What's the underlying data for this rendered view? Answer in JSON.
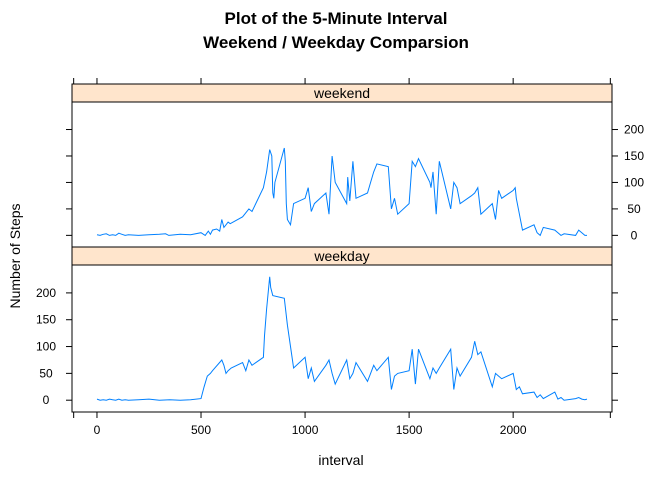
{
  "chart_data": {
    "type": "line",
    "title": [
      "Plot of the 5-Minute Interval",
      "Weekend / Weekday Comparsion"
    ],
    "xlabel": "interval",
    "ylabel": "Number of Steps",
    "xlim": [
      -120,
      2475
    ],
    "ylim": [
      -22,
      252
    ],
    "x_ticks": [
      0,
      500,
      1000,
      1500,
      2000
    ],
    "y_ticks": [
      0,
      50,
      100,
      150,
      200
    ],
    "line_color": "#0080ff",
    "strip_color": "#ffe5cc",
    "panels": [
      {
        "name": "weekend",
        "y_axis_side": "right",
        "x": [
          0,
          15,
          30,
          45,
          60,
          75,
          90,
          105,
          120,
          135,
          150,
          200,
          250,
          300,
          330,
          345,
          400,
          450,
          500,
          520,
          535,
          545,
          555,
          575,
          590,
          600,
          610,
          620,
          630,
          640,
          700,
          730,
          745,
          800,
          815,
          830,
          840,
          845,
          850,
          855,
          900,
          905,
          910,
          915,
          930,
          945,
          1000,
          1015,
          1030,
          1045,
          1100,
          1115,
          1130,
          1145,
          1200,
          1205,
          1215,
          1230,
          1245,
          1300,
          1315,
          1330,
          1345,
          1400,
          1415,
          1430,
          1445,
          1500,
          1515,
          1530,
          1545,
          1600,
          1605,
          1615,
          1630,
          1645,
          1700,
          1715,
          1730,
          1745,
          1800,
          1815,
          1830,
          1845,
          1900,
          1915,
          1930,
          1945,
          2000,
          2010,
          2015,
          2030,
          2045,
          2100,
          2115,
          2130,
          2145,
          2200,
          2215,
          2230,
          2245,
          2300,
          2315,
          2330,
          2345,
          2355
        ],
        "values": [
          1,
          0,
          2,
          3,
          0,
          1,
          0,
          4,
          2,
          0,
          1,
          0,
          1,
          2,
          3,
          0,
          2,
          1,
          5,
          0,
          8,
          2,
          10,
          12,
          8,
          30,
          15,
          20,
          25,
          22,
          35,
          50,
          45,
          90,
          120,
          162,
          150,
          80,
          70,
          100,
          165,
          140,
          60,
          30,
          20,
          60,
          70,
          90,
          45,
          60,
          80,
          40,
          150,
          100,
          60,
          110,
          65,
          140,
          70,
          80,
          100,
          120,
          135,
          130,
          50,
          70,
          40,
          60,
          140,
          130,
          145,
          100,
          90,
          120,
          40,
          140,
          50,
          100,
          90,
          60,
          75,
          80,
          90,
          40,
          60,
          30,
          85,
          70,
          85,
          90,
          70,
          40,
          10,
          20,
          5,
          0,
          15,
          10,
          5,
          0,
          3,
          0,
          10,
          5,
          0,
          0
        ]
      },
      {
        "name": "weekday",
        "y_axis_side": "left",
        "x": [
          0,
          15,
          30,
          45,
          60,
          75,
          90,
          105,
          120,
          135,
          150,
          200,
          250,
          300,
          350,
          400,
          450,
          500,
          515,
          530,
          545,
          555,
          600,
          610,
          620,
          630,
          645,
          700,
          715,
          730,
          745,
          800,
          805,
          815,
          830,
          835,
          845,
          900,
          915,
          930,
          945,
          1000,
          1015,
          1030,
          1045,
          1100,
          1115,
          1130,
          1145,
          1200,
          1215,
          1230,
          1245,
          1300,
          1315,
          1330,
          1345,
          1400,
          1415,
          1430,
          1445,
          1500,
          1515,
          1530,
          1545,
          1600,
          1615,
          1630,
          1645,
          1700,
          1715,
          1730,
          1745,
          1800,
          1815,
          1830,
          1845,
          1900,
          1915,
          1930,
          1945,
          2000,
          2015,
          2030,
          2045,
          2100,
          2115,
          2130,
          2145,
          2200,
          2215,
          2230,
          2245,
          2300,
          2315,
          2330,
          2345,
          2355
        ],
        "values": [
          2,
          0,
          1,
          0,
          2,
          1,
          0,
          2,
          0,
          1,
          0,
          1,
          2,
          0,
          1,
          0,
          1,
          3,
          25,
          45,
          50,
          55,
          75,
          65,
          50,
          55,
          60,
          70,
          55,
          75,
          65,
          80,
          120,
          170,
          230,
          210,
          195,
          190,
          140,
          100,
          60,
          80,
          40,
          60,
          35,
          65,
          75,
          50,
          30,
          75,
          40,
          50,
          70,
          35,
          50,
          65,
          55,
          80,
          20,
          45,
          50,
          55,
          95,
          30,
          95,
          40,
          60,
          50,
          60,
          95,
          20,
          60,
          45,
          80,
          110,
          85,
          90,
          25,
          50,
          45,
          40,
          50,
          20,
          25,
          12,
          15,
          5,
          10,
          3,
          15,
          2,
          5,
          0,
          3,
          5,
          2,
          1,
          2
        ]
      }
    ],
    "grid": false,
    "legend": "none"
  }
}
